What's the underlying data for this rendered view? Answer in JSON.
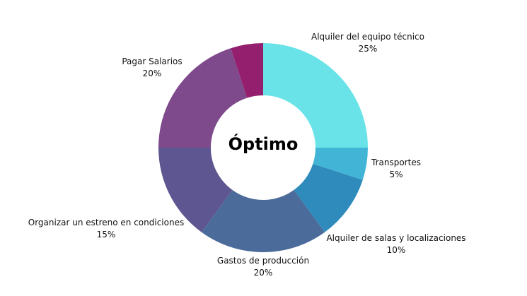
{
  "chart_data": {
    "type": "pie",
    "donut": true,
    "center_label": "Óptimo",
    "slices": [
      {
        "label": "Alquiler del equipo técnico",
        "value": 25,
        "value_label": "25%",
        "color": "#69e3e8"
      },
      {
        "label": "Transportes",
        "value": 5,
        "value_label": "5%",
        "color": "#42b5d6"
      },
      {
        "label": "Alquiler de salas y localizaciones",
        "value": 10,
        "value_label": "10%",
        "color": "#2e8bbb"
      },
      {
        "label": "Gastos de producción",
        "value": 20,
        "value_label": "20%",
        "color": "#4b6b9a"
      },
      {
        "label": "Organizar un estreno en condiciones",
        "value": 15,
        "value_label": "15%",
        "color": "#5e5690"
      },
      {
        "label": "Pagar Salarios",
        "value": 20,
        "value_label": "20%",
        "color": "#7e4a8b"
      },
      {
        "label": "",
        "value": 5,
        "value_label": "",
        "color": "#951f6f"
      }
    ]
  }
}
